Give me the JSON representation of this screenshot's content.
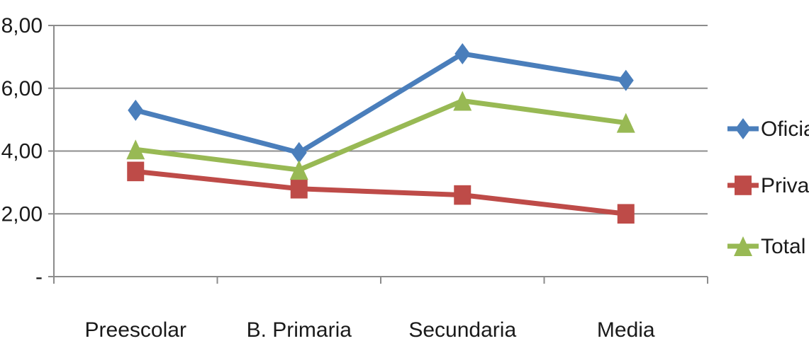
{
  "chart_data": {
    "type": "line",
    "categories": [
      "Preescolar",
      "B. Primaria",
      "Secundaria",
      "Media"
    ],
    "series": [
      {
        "name": "Oficial",
        "values": [
          5.3,
          3.95,
          7.1,
          6.25
        ],
        "color": "#4a7ebb",
        "marker": "diamond"
      },
      {
        "name": "Privado",
        "values": [
          3.35,
          2.8,
          2.6,
          2.0
        ],
        "color": "#be4b48",
        "marker": "square"
      },
      {
        "name": "Total",
        "values": [
          4.05,
          3.4,
          5.6,
          4.9
        ],
        "color": "#98b954",
        "marker": "triangle"
      }
    ],
    "ylim": [
      0,
      8
    ],
    "yticks": [
      0,
      2,
      4,
      6,
      8
    ],
    "ytick_labels": [
      "-",
      "2,00",
      "4,00",
      "6,00",
      "8,00"
    ],
    "grid": true,
    "legend_position": "right"
  }
}
